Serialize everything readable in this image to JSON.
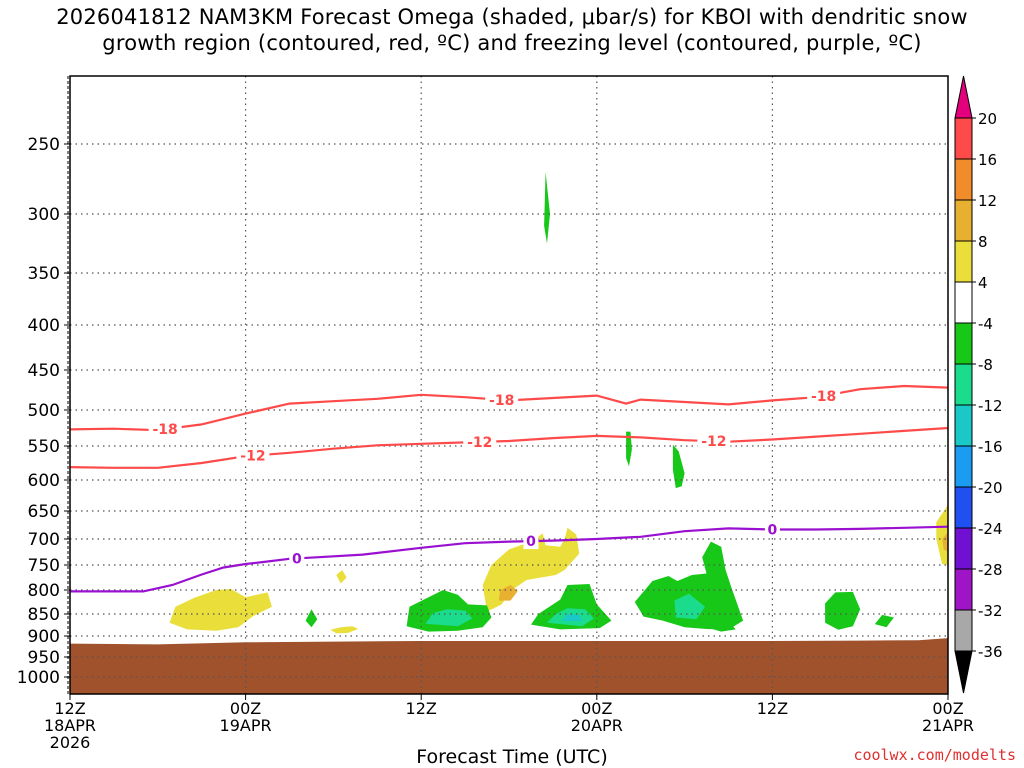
{
  "title": {
    "line1": "2026041812 NAM3KM Forecast Omega (shaded, μbar/s) for KBOI with dendritic snow",
    "line2": "growth region (contoured, red, ºC) and freezing level (contoured, purple, ºC)"
  },
  "xaxis_label": "Forecast Time (UTC)",
  "credit": "coolwx.com/modelts",
  "chart_data": {
    "type": "heatmap",
    "x_ticks": [
      {
        "hours": 0,
        "lines": [
          "12Z",
          "18APR",
          "2026"
        ]
      },
      {
        "hours": 12,
        "lines": [
          "00Z",
          "19APR"
        ]
      },
      {
        "hours": 24,
        "lines": [
          "12Z"
        ]
      },
      {
        "hours": 36,
        "lines": [
          "00Z",
          "20APR"
        ]
      },
      {
        "hours": 48,
        "lines": [
          "12Z"
        ]
      },
      {
        "hours": 60,
        "lines": [
          "00Z",
          "21APR"
        ]
      }
    ],
    "xlim_hours": [
      0,
      60
    ],
    "y_ticks": [
      250,
      300,
      350,
      400,
      450,
      500,
      550,
      600,
      650,
      700,
      750,
      800,
      850,
      900,
      950,
      1000
    ],
    "ylabel": "",
    "grid": true,
    "colorbar": {
      "levels": [
        20,
        16,
        12,
        8,
        4,
        -4,
        -8,
        -12,
        -16,
        -20,
        -24,
        -28,
        -32,
        -36
      ],
      "colors": [
        "#e4007c",
        "#ff4a4a",
        "#f08c2a",
        "#e8b030",
        "#eadf3a",
        "#ffffff",
        "#18c818",
        "#1adc8c",
        "#1ac8c8",
        "#1a9cf0",
        "#2050f0",
        "#7010d0",
        "#a014c8",
        "#a8a8a8",
        "#000000"
      ]
    },
    "series": [
      {
        "name": "-18",
        "color": "#ff4a4a",
        "points": [
          [
            0,
            527
          ],
          [
            3,
            526
          ],
          [
            6,
            528
          ],
          [
            9,
            520
          ],
          [
            12,
            505
          ],
          [
            15,
            492
          ],
          [
            18,
            489
          ],
          [
            21,
            486
          ],
          [
            24,
            481
          ],
          [
            27,
            484
          ],
          [
            30,
            488
          ],
          [
            33,
            485
          ],
          [
            36,
            482
          ],
          [
            38,
            492
          ],
          [
            39,
            487
          ],
          [
            42,
            490
          ],
          [
            45,
            493
          ],
          [
            48,
            488
          ],
          [
            51,
            484
          ],
          [
            54,
            474
          ],
          [
            57,
            470
          ],
          [
            60,
            472
          ]
        ],
        "labels": [
          {
            "x": 6.5,
            "text": "-18"
          },
          {
            "x": 29.5,
            "text": "-18"
          },
          {
            "x": 51.5,
            "text": "-18"
          }
        ]
      },
      {
        "name": "-12",
        "color": "#ff4a4a",
        "points": [
          [
            0,
            581
          ],
          [
            3,
            582
          ],
          [
            6,
            582
          ],
          [
            9,
            575
          ],
          [
            12,
            565
          ],
          [
            15,
            560
          ],
          [
            18,
            554
          ],
          [
            21,
            549
          ],
          [
            24,
            547
          ],
          [
            27,
            545
          ],
          [
            30,
            543
          ],
          [
            33,
            539
          ],
          [
            36,
            536
          ],
          [
            39,
            538
          ],
          [
            42,
            542
          ],
          [
            45,
            544
          ],
          [
            48,
            541
          ],
          [
            51,
            537
          ],
          [
            54,
            533
          ],
          [
            57,
            529
          ],
          [
            60,
            525
          ]
        ],
        "labels": [
          {
            "x": 12.5,
            "text": "-12"
          },
          {
            "x": 28,
            "text": "-12"
          },
          {
            "x": 44,
            "text": "-12"
          }
        ]
      },
      {
        "name": "0",
        "color": "#9a10d0",
        "points": [
          [
            0,
            803
          ],
          [
            5,
            803
          ],
          [
            7,
            790
          ],
          [
            9,
            769
          ],
          [
            10.5,
            755
          ],
          [
            12,
            748
          ],
          [
            13,
            745
          ],
          [
            15,
            738
          ],
          [
            17,
            735
          ],
          [
            20,
            730
          ],
          [
            24,
            717
          ],
          [
            27,
            708
          ],
          [
            30,
            705
          ],
          [
            33,
            703
          ],
          [
            36,
            700
          ],
          [
            39,
            696
          ],
          [
            42,
            686
          ],
          [
            45,
            681
          ],
          [
            48,
            683
          ],
          [
            51,
            683
          ],
          [
            54,
            682
          ],
          [
            57,
            680
          ],
          [
            60,
            678
          ]
        ],
        "labels": [
          {
            "x": 15.5,
            "text": "0"
          },
          {
            "x": 31.5,
            "text": "0"
          },
          {
            "x": 48,
            "text": "0"
          }
        ]
      }
    ],
    "omega_regions": [
      {
        "value": 6,
        "color": "#eadf3a",
        "points": [
          [
            6.8,
            870
          ],
          [
            7.2,
            835
          ],
          [
            8.5,
            816
          ],
          [
            10,
            800
          ],
          [
            11,
            798
          ],
          [
            12,
            815
          ],
          [
            13.5,
            805
          ],
          [
            13.8,
            835
          ],
          [
            12.5,
            855
          ],
          [
            11.5,
            880
          ],
          [
            10,
            888
          ],
          [
            8,
            885
          ]
        ]
      },
      {
        "value": 6,
        "color": "#eadf3a",
        "points": [
          [
            17.8,
            886
          ],
          [
            18.5,
            880
          ],
          [
            19.3,
            878
          ],
          [
            19.7,
            884
          ],
          [
            19,
            893
          ],
          [
            18.2,
            894
          ]
        ]
      },
      {
        "value": 6,
        "color": "#eadf3a",
        "points": [
          [
            18.2,
            770
          ],
          [
            18.6,
            760
          ],
          [
            18.9,
            775
          ],
          [
            18.5,
            787
          ]
        ]
      },
      {
        "value": 6,
        "color": "#eadf3a",
        "points": [
          [
            28.5,
            845
          ],
          [
            28.2,
            790
          ],
          [
            28.8,
            750
          ],
          [
            30,
            720
          ],
          [
            31.5,
            705
          ],
          [
            32.3,
            690
          ],
          [
            32.5,
            712
          ],
          [
            33.5,
            715
          ],
          [
            33.8,
            700
          ],
          [
            34,
            680
          ],
          [
            34.6,
            692
          ],
          [
            34.8,
            728
          ],
          [
            33.8,
            760
          ],
          [
            33.2,
            770
          ],
          [
            31.2,
            780
          ],
          [
            30.2,
            800
          ],
          [
            29.5,
            830
          ]
        ]
      },
      {
        "value": 10,
        "color": "#e8b030",
        "points": [
          [
            29.3,
            822
          ],
          [
            29.4,
            800
          ],
          [
            30.1,
            790
          ],
          [
            30.6,
            802
          ],
          [
            30.1,
            822
          ]
        ]
      },
      {
        "value": 6,
        "color": "#eadf3a",
        "points": [
          [
            59.2,
            700
          ],
          [
            59.2,
            670
          ],
          [
            60,
            640
          ],
          [
            60,
            750
          ],
          [
            59.6,
            748
          ]
        ]
      },
      {
        "value": 10,
        "color": "#e8b030",
        "points": [
          [
            59.7,
            720
          ],
          [
            59.6,
            700
          ],
          [
            60,
            688
          ],
          [
            60,
            725
          ]
        ]
      },
      {
        "value": -6,
        "color": "#18c818",
        "points": [
          [
            32.4,
            310
          ],
          [
            32.5,
            270
          ],
          [
            32.8,
            300
          ],
          [
            32.6,
            325
          ]
        ]
      },
      {
        "value": -6,
        "color": "#18c818",
        "points": [
          [
            16.1,
            865
          ],
          [
            16.5,
            840
          ],
          [
            16.9,
            862
          ],
          [
            16.5,
            880
          ]
        ]
      },
      {
        "value": -6,
        "color": "#18c818",
        "points": [
          [
            23,
            878
          ],
          [
            23.2,
            835
          ],
          [
            24.5,
            815
          ],
          [
            25.5,
            800
          ],
          [
            26.5,
            810
          ],
          [
            27.2,
            830
          ],
          [
            28.5,
            832
          ],
          [
            28.8,
            858
          ],
          [
            28.2,
            880
          ],
          [
            26.5,
            888
          ],
          [
            24.5,
            890
          ]
        ]
      },
      {
        "value": -10,
        "color": "#1adc8c",
        "points": [
          [
            24.3,
            872
          ],
          [
            24.8,
            848
          ],
          [
            25.8,
            840
          ],
          [
            27,
            843
          ],
          [
            27.5,
            860
          ],
          [
            26.5,
            878
          ]
        ]
      },
      {
        "value": -6,
        "color": "#18c818",
        "points": [
          [
            31.5,
            874
          ],
          [
            32,
            850
          ],
          [
            33.5,
            820
          ],
          [
            34,
            790
          ],
          [
            35.5,
            788
          ],
          [
            36,
            830
          ],
          [
            37,
            865
          ],
          [
            36.2,
            882
          ],
          [
            33.5,
            885
          ]
        ]
      },
      {
        "value": -10,
        "color": "#1adc8c",
        "points": [
          [
            32.6,
            870
          ],
          [
            33.2,
            850
          ],
          [
            34,
            838
          ],
          [
            35.2,
            840
          ],
          [
            35.8,
            860
          ],
          [
            35,
            878
          ]
        ]
      },
      {
        "value": -14,
        "color": "#1ac8c8",
        "points": [
          [
            33.6,
            866
          ],
          [
            34,
            850
          ],
          [
            34.8,
            852
          ],
          [
            35,
            866
          ]
        ]
      },
      {
        "value": -6,
        "color": "#18c818",
        "points": [
          [
            38,
            530
          ],
          [
            38.3,
            530
          ],
          [
            38.4,
            555
          ],
          [
            38.2,
            580
          ],
          [
            38,
            568
          ]
        ]
      },
      {
        "value": -6,
        "color": "#18c818",
        "points": [
          [
            41.2,
            548
          ],
          [
            41.6,
            558
          ],
          [
            42,
            590
          ],
          [
            41.8,
            610
          ],
          [
            41.4,
            613
          ],
          [
            41.2,
            585
          ]
        ]
      },
      {
        "value": -6,
        "color": "#18c818",
        "points": [
          [
            38.6,
            825
          ],
          [
            39.8,
            782
          ],
          [
            40.9,
            772
          ],
          [
            41.5,
            782
          ],
          [
            42.5,
            770
          ],
          [
            43.5,
            767
          ],
          [
            43.2,
            735
          ],
          [
            43.8,
            705
          ],
          [
            44.5,
            715
          ],
          [
            44.8,
            760
          ],
          [
            45.2,
            795
          ],
          [
            46,
            865
          ],
          [
            45,
            886
          ],
          [
            43.5,
            884
          ],
          [
            42,
            880
          ],
          [
            40.5,
            865
          ],
          [
            39.2,
            856
          ]
        ]
      },
      {
        "value": -10,
        "color": "#1adc8c",
        "points": [
          [
            41.4,
            858
          ],
          [
            41.3,
            822
          ],
          [
            42.3,
            808
          ],
          [
            43.4,
            835
          ],
          [
            42.8,
            862
          ]
        ]
      },
      {
        "value": -6,
        "color": "#18c818",
        "points": [
          [
            43.5,
            880
          ],
          [
            44.8,
            860
          ],
          [
            45.5,
            885
          ],
          [
            44.5,
            890
          ]
        ]
      },
      {
        "value": -6,
        "color": "#18c818",
        "points": [
          [
            51.6,
            870
          ],
          [
            51.6,
            828
          ],
          [
            52.3,
            805
          ],
          [
            53.5,
            804
          ],
          [
            54,
            840
          ],
          [
            53.5,
            878
          ],
          [
            52.5,
            886
          ]
        ]
      },
      {
        "value": -6,
        "color": "#18c818",
        "points": [
          [
            55,
            873
          ],
          [
            55.5,
            852
          ],
          [
            56.3,
            858
          ],
          [
            55.8,
            880
          ]
        ]
      }
    ],
    "ground_surface": [
      [
        0,
        918
      ],
      [
        6,
        920
      ],
      [
        12,
        915
      ],
      [
        24,
        912
      ],
      [
        36,
        912
      ],
      [
        48,
        912
      ],
      [
        54,
        911
      ],
      [
        58,
        910
      ],
      [
        60,
        905
      ]
    ]
  }
}
